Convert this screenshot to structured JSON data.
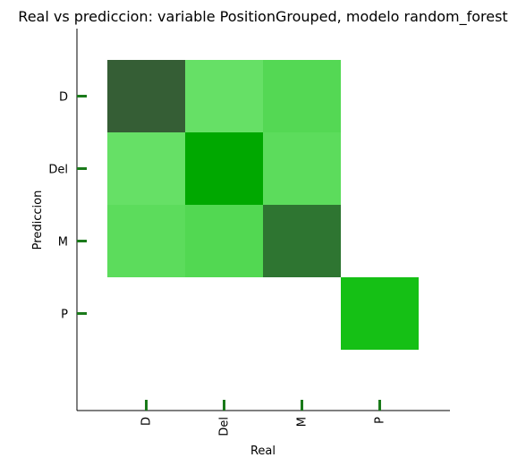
{
  "chart_data": {
    "type": "heatmap",
    "title": "Real vs prediccion: variable PositionGrouped, modelo random_forest",
    "xlabel": "Real",
    "ylabel": "Prediccion",
    "x_categories": [
      "D",
      "Del",
      "M",
      "P"
    ],
    "y_categories": [
      "D",
      "Del",
      "M",
      "P"
    ],
    "cells": [
      {
        "real": "D",
        "pred": "D",
        "color": "#355e35"
      },
      {
        "real": "Del",
        "pred": "D",
        "color": "#66e066"
      },
      {
        "real": "M",
        "pred": "D",
        "color": "#54d854"
      },
      {
        "real": "D",
        "pred": "Del",
        "color": "#66e066"
      },
      {
        "real": "Del",
        "pred": "Del",
        "color": "#00a800"
      },
      {
        "real": "M",
        "pred": "Del",
        "color": "#5cdc5c"
      },
      {
        "real": "D",
        "pred": "M",
        "color": "#5cdc5c"
      },
      {
        "real": "Del",
        "pred": "M",
        "color": "#52d852"
      },
      {
        "real": "M",
        "pred": "M",
        "color": "#2e7531"
      },
      {
        "real": "P",
        "pred": "P",
        "color": "#15c015"
      }
    ],
    "tick_color": "#1a7a1a",
    "grid": false
  }
}
